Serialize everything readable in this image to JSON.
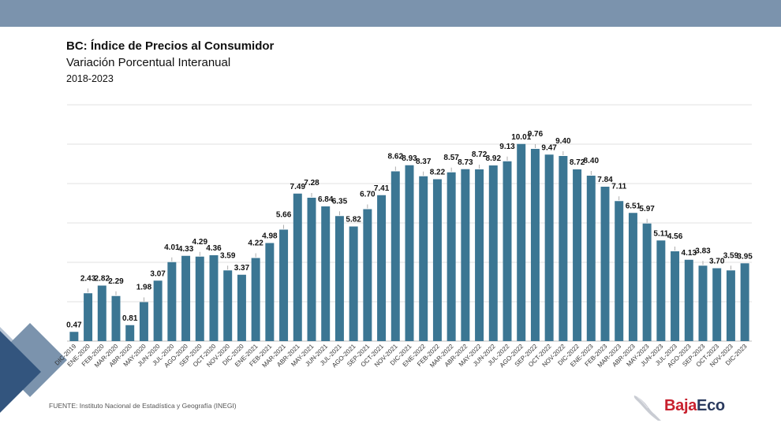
{
  "header": {
    "title": "BC: Índice de Precios al Consumidor",
    "subtitle": "Variación Porcentual Interanual",
    "period": "2018-2023"
  },
  "source": "FUENTE: Instituto Nacional de Estadística y Geografía (INEGI)",
  "logo": {
    "part1": "Baja",
    "part2": "Eco"
  },
  "colors": {
    "bar": "#3b7693",
    "band": "#7b93ad",
    "grid": "#e2e2e2"
  },
  "chart_data": {
    "type": "bar",
    "title": "BC: Índice de Precios al Consumidor",
    "subtitle": "Variación Porcentual Interanual",
    "xlabel": "",
    "ylabel": "",
    "ylim": [
      0,
      12
    ],
    "grid": true,
    "categories": [
      "DIC-2019",
      "ENE-2020",
      "FEB-2020",
      "MAR-2020",
      "ABR-2020",
      "MAY-2020",
      "JUN-2020",
      "JUL-2020",
      "AGO-2020",
      "SEP-2020",
      "OCT-2020",
      "NOV-2020",
      "DIC-2020",
      "ENE-2021",
      "FEB-2021",
      "MAR-2021",
      "ABR-2021",
      "MAY-2021",
      "JUN-2021",
      "JUL-2021",
      "AGO-2021",
      "SEP-2021",
      "OCT-2021",
      "NOV-2021",
      "DIC-2021",
      "ENE-2022",
      "FEB-2022",
      "MAR-2022",
      "ABR-2022",
      "MAY-2022",
      "JUN-2022",
      "JUL-2022",
      "AGO-2022",
      "SEP-2022",
      "OCT-2022",
      "NOV-2022",
      "DIC-2022",
      "ENE-2023",
      "FEB-2023",
      "MAR-2023",
      "ABR-2023",
      "MAY-2023",
      "JUN-2023",
      "JUL-2023",
      "AGO-2023",
      "SEP-2023",
      "OCT-2023",
      "NOV-2023",
      "DIC-2023"
    ],
    "values": [
      0.47,
      2.43,
      2.82,
      2.29,
      0.81,
      1.98,
      3.07,
      4.01,
      4.33,
      4.29,
      4.36,
      3.59,
      3.37,
      4.22,
      4.98,
      5.66,
      7.49,
      7.28,
      6.84,
      6.35,
      5.82,
      6.7,
      7.41,
      8.62,
      8.93,
      8.37,
      8.22,
      8.57,
      8.73,
      8.72,
      8.92,
      9.13,
      10.01,
      9.76,
      9.47,
      9.4,
      8.72,
      8.4,
      7.84,
      7.11,
      6.51,
      5.97,
      5.11,
      4.56,
      4.13,
      3.83,
      3.7,
      3.59,
      3.95
    ],
    "data_labels": [
      "0.47",
      "2.43",
      "2.82",
      "2.29",
      "0.81",
      "1.98",
      "3.07",
      "4.01",
      "4.33",
      "4.29",
      "4.36",
      "3.59",
      "3.37",
      "4.22",
      "4.98",
      "5.66",
      "7.49",
      "7.28",
      "6.84",
      "6.35",
      "5.82",
      "6.70",
      "7.41",
      "8.62",
      "8.93",
      "8.37",
      "8.22",
      "8.57",
      "8.73",
      "8.72",
      "8.92",
      "9.13",
      "10.01",
      "9.76",
      "9.47",
      "9.40",
      "8.72",
      "8.40",
      "7.84",
      "7.11",
      "6.51",
      "5.97",
      "5.11",
      "4.56",
      "4.13",
      "3.83",
      "3.70",
      "3.59",
      "3.95"
    ]
  }
}
